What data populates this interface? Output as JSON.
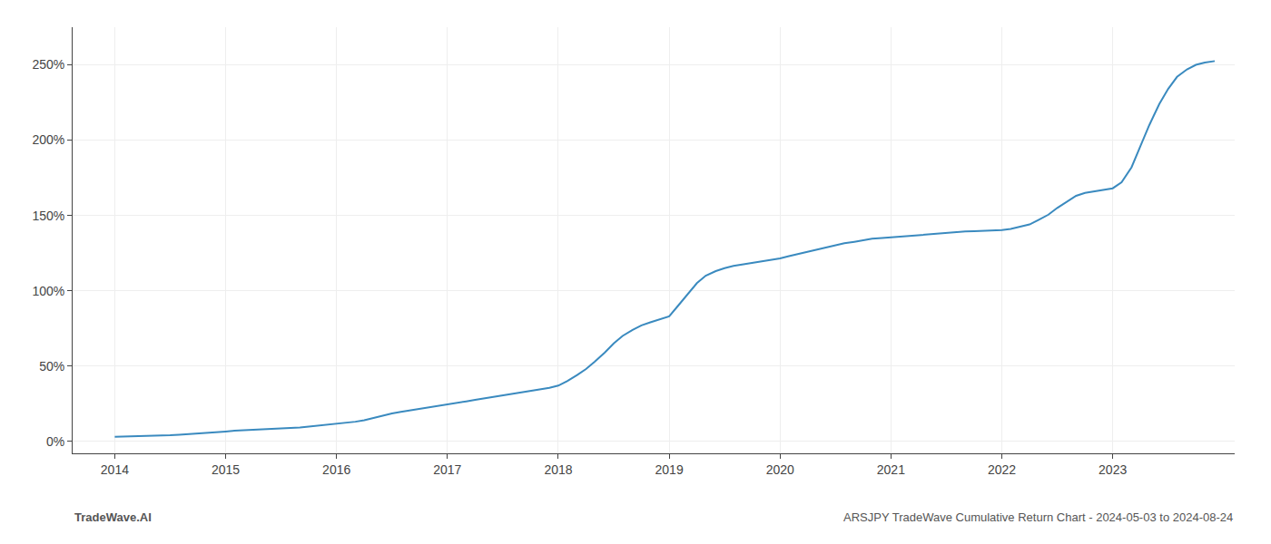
{
  "chart_data": {
    "type": "line",
    "title": "ARSJPY TradeWave Cumulative Return Chart - 2024-05-03 to 2024-08-24",
    "annotations": [
      "TradeWave.AI"
    ],
    "color": "#3a8abf",
    "grid": true,
    "x": [
      2014.0,
      2014.08,
      2014.17,
      2014.25,
      2014.33,
      2014.42,
      2014.5,
      2014.58,
      2014.67,
      2014.75,
      2014.83,
      2014.92,
      2015.0,
      2015.08,
      2015.17,
      2015.25,
      2015.33,
      2015.42,
      2015.5,
      2015.58,
      2015.67,
      2015.75,
      2015.83,
      2015.92,
      2016.0,
      2016.08,
      2016.17,
      2016.25,
      2016.33,
      2016.42,
      2016.5,
      2016.58,
      2016.67,
      2016.75,
      2016.83,
      2016.92,
      2017.0,
      2017.08,
      2017.17,
      2017.25,
      2017.33,
      2017.42,
      2017.5,
      2017.58,
      2017.67,
      2017.75,
      2017.83,
      2017.92,
      2018.0,
      2018.08,
      2018.17,
      2018.25,
      2018.33,
      2018.42,
      2018.5,
      2018.58,
      2018.67,
      2018.75,
      2018.83,
      2018.92,
      2019.0,
      2019.08,
      2019.17,
      2019.25,
      2019.33,
      2019.42,
      2019.5,
      2019.58,
      2019.67,
      2019.75,
      2019.83,
      2019.92,
      2020.0,
      2020.08,
      2020.17,
      2020.25,
      2020.33,
      2020.42,
      2020.5,
      2020.58,
      2020.67,
      2020.75,
      2020.83,
      2020.92,
      2021.0,
      2021.08,
      2021.17,
      2021.25,
      2021.33,
      2021.42,
      2021.5,
      2021.58,
      2021.67,
      2021.75,
      2021.83,
      2021.92,
      2022.0,
      2022.08,
      2022.17,
      2022.25,
      2022.33,
      2022.42,
      2022.5,
      2022.58,
      2022.67,
      2022.75,
      2022.83,
      2022.92,
      2023.0,
      2023.08,
      2023.17,
      2023.25,
      2023.33,
      2023.42,
      2023.5,
      2023.58,
      2023.67,
      2023.75,
      2023.83,
      2023.92
    ],
    "values": [
      3.0,
      3.1,
      3.2,
      3.3,
      3.5,
      3.7,
      4.0,
      4.3,
      4.7,
      5.0,
      5.5,
      6.0,
      6.5,
      7.0,
      7.3,
      7.5,
      7.8,
      8.0,
      8.3,
      8.7,
      9.2,
      9.7,
      10.3,
      11.0,
      11.5,
      12.0,
      13.0,
      14.0,
      15.5,
      17.0,
      18.5,
      19.5,
      20.5,
      21.5,
      22.5,
      23.5,
      24.5,
      25.5,
      26.5,
      27.5,
      28.5,
      29.5,
      30.5,
      31.5,
      32.5,
      33.5,
      34.5,
      35.5,
      37.0,
      40.0,
      44.0,
      48.0,
      53.0,
      59.0,
      65.0,
      70.0,
      74.0,
      77.0,
      79.0,
      81.0,
      83.0,
      90.0,
      98.0,
      105.0,
      110.0,
      113.0,
      115.0,
      116.5,
      117.5,
      118.5,
      119.5,
      120.5,
      121.5,
      123.0,
      124.5,
      126.0,
      127.5,
      129.0,
      130.0,
      131.5,
      132.5,
      133.5,
      134.5,
      135.0,
      135.5,
      136.0,
      136.5,
      137.0,
      137.5,
      138.0,
      138.5,
      139.0,
      139.3,
      139.5,
      139.7,
      140.0,
      140.3,
      141.0,
      142.5,
      144.0,
      147.0,
      150.5,
      155.0,
      159.0,
      163.0,
      165.0,
      166.0,
      167.0,
      168.0,
      172.0,
      182.0,
      196.0,
      210.0,
      224.0,
      234.0,
      242.0,
      247.0,
      250.0,
      251.5,
      252.5
    ],
    "xlim": [
      2013.62,
      2024.1
    ],
    "xticks": [
      2014,
      2015,
      2016,
      2017,
      2018,
      2019,
      2020,
      2021,
      2022,
      2023
    ],
    "ylim": [
      -8,
      275
    ],
    "yticks": [
      {
        "value": 0,
        "label": "0%"
      },
      {
        "value": 50,
        "label": "50%"
      },
      {
        "value": 100,
        "label": "100%"
      },
      {
        "value": 150,
        "label": "150%"
      },
      {
        "value": 200,
        "label": "200%"
      },
      {
        "value": 250,
        "label": "250%"
      }
    ]
  }
}
